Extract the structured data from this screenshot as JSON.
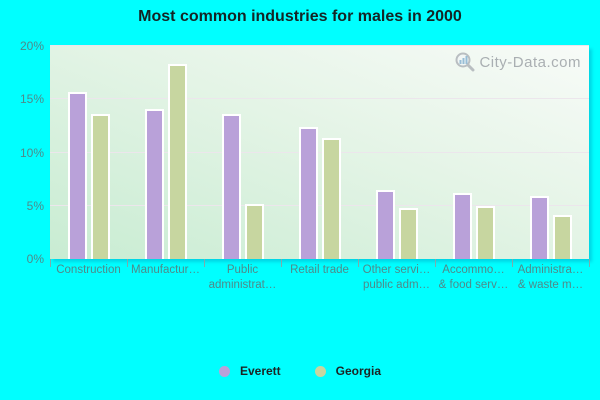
{
  "title": "Most common industries for males in 2000",
  "watermark": "City-Data.com",
  "chart_data": {
    "type": "bar",
    "categories": [
      "Construction",
      "Manufactur…",
      "Public administrat…",
      "Retail trade",
      "Other servi… public adm…",
      "Accommo… & food serv…",
      "Administra… & waste m…"
    ],
    "category_label_lines": [
      [
        "Construction"
      ],
      [
        "Manufactur…"
      ],
      [
        "Public",
        "administrat…"
      ],
      [
        "Retail trade"
      ],
      [
        "Other servi…",
        "public adm…"
      ],
      [
        "Accommo…",
        "& food serv…"
      ],
      [
        "Administra…",
        "& waste m…"
      ]
    ],
    "series": [
      {
        "name": "Everett",
        "color": "#b9a1d9",
        "values": [
          15.5,
          13.9,
          13.4,
          12.2,
          6.3,
          6.0,
          5.7
        ]
      },
      {
        "name": "Georgia",
        "color": "#c7d6a0",
        "values": [
          13.4,
          18.1,
          5.0,
          11.2,
          4.6,
          4.8,
          3.9
        ]
      }
    ],
    "xlabel": "",
    "ylabel": "",
    "ylim": [
      0,
      20
    ],
    "yticks": [
      {
        "value": 0,
        "label": "0%"
      },
      {
        "value": 5,
        "label": "5%"
      },
      {
        "value": 10,
        "label": "10%"
      },
      {
        "value": 15,
        "label": "15%"
      },
      {
        "value": 20,
        "label": "20%"
      }
    ],
    "grid": true,
    "legend_position": "bottom"
  },
  "colors": {
    "page_background": "#00ffff",
    "plot_gradient_start": "#c8ecd2",
    "plot_gradient_end": "#f8fbf8",
    "axis_text": "#4f8a8a",
    "title_text": "#142525",
    "gridline": "#ece6ec",
    "bar_border": "#ffffff",
    "watermark_text": "#a2a7ab"
  }
}
